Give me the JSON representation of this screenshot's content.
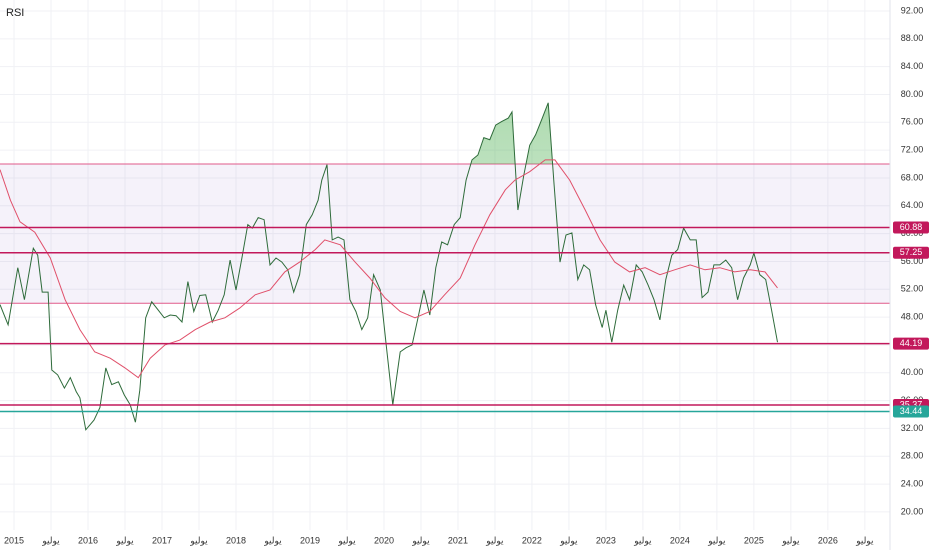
{
  "chart_data": {
    "type": "line",
    "title": "RSI",
    "xlim": [
      2014.81,
      2026.84
    ],
    "ylim": [
      17.4,
      93.58
    ],
    "xticks": [
      2015,
      {
        "value": 2015.5,
        "label": "يوليو"
      },
      2016,
      {
        "value": 2016.5,
        "label": "يوليو"
      },
      2017,
      {
        "value": 2017.5,
        "label": "يوليو"
      },
      2018,
      {
        "value": 2018.5,
        "label": "يوليو"
      },
      2019,
      {
        "value": 2019.5,
        "label": "يوليو"
      },
      2020,
      {
        "value": 2020.5,
        "label": "يوليو"
      },
      2021,
      {
        "value": 2021.5,
        "label": "يوليو"
      },
      2022,
      {
        "value": 2022.5,
        "label": "يوليو"
      },
      2023,
      {
        "value": 2023.5,
        "label": "يوليو"
      },
      2024,
      {
        "value": 2024.5,
        "label": "يوليو"
      },
      2025,
      {
        "value": 2025.5,
        "label": "يوليو"
      },
      2026,
      {
        "value": 2026.5,
        "label": "يوليو"
      }
    ],
    "yticks": [
      {
        "value": 92,
        "label": "92.00"
      },
      {
        "value": 88,
        "label": "88.00"
      },
      {
        "value": 84,
        "label": "84.00"
      },
      {
        "value": 80,
        "label": "80.00"
      },
      {
        "value": 76,
        "label": "76.00"
      },
      {
        "value": 72,
        "label": "72.00"
      },
      {
        "value": 68,
        "label": "68.00"
      },
      {
        "value": 64,
        "label": "64.00"
      },
      {
        "value": 60,
        "label": "60.00"
      },
      {
        "value": 56,
        "label": "56.00"
      },
      {
        "value": 52,
        "label": "52.00"
      },
      {
        "value": 48,
        "label": "48.00"
      },
      {
        "value": 44,
        "label": "44.00"
      },
      {
        "value": 40,
        "label": "40.00"
      },
      {
        "value": 36,
        "label": "36.00"
      },
      {
        "value": 32,
        "label": "32.00"
      },
      {
        "value": 28,
        "label": "28.00"
      },
      {
        "value": 24,
        "label": "24.00"
      },
      {
        "value": 20,
        "label": "20.00"
      }
    ],
    "grid": true,
    "band": {
      "from": 50,
      "to": 70,
      "color": "#7e57c2"
    },
    "levels": [
      {
        "value": 60.88,
        "color": "#c2185b"
      },
      {
        "value": 57.25,
        "color": "#c2185b"
      },
      {
        "value": 44.19,
        "color": "#c2185b"
      },
      {
        "value": 35.37,
        "color": "#c2185b"
      },
      {
        "value": 34.44,
        "color": "#26a69a"
      }
    ],
    "series": [
      {
        "color": "#2e6b3a",
        "x": [
          2014.81,
          2014.92,
          2015.05,
          2015.14,
          2015.26,
          2015.32,
          2015.38,
          2015.46,
          2015.51,
          2015.59,
          2015.68,
          2015.76,
          2015.84,
          2015.89,
          2015.97,
          2016.08,
          2016.16,
          2016.24,
          2016.32,
          2016.41,
          2016.49,
          2016.57,
          2016.64,
          2016.7,
          2016.78,
          2016.86,
          2016.95,
          2017.03,
          2017.11,
          2017.19,
          2017.27,
          2017.35,
          2017.43,
          2017.51,
          2017.59,
          2017.68,
          2017.76,
          2017.84,
          2017.92,
          2018.0,
          2018.08,
          2018.16,
          2018.22,
          2018.3,
          2018.38,
          2018.46,
          2018.54,
          2018.62,
          2018.7,
          2018.78,
          2018.86,
          2018.95,
          2019.03,
          2019.11,
          2019.16,
          2019.23,
          2019.3,
          2019.38,
          2019.46,
          2019.54,
          2019.62,
          2019.7,
          2019.78,
          2019.86,
          2019.95,
          2020.03,
          2020.12,
          2020.22,
          2020.3,
          2020.38,
          2020.46,
          2020.54,
          2020.62,
          2020.7,
          2020.78,
          2020.86,
          2020.95,
          2021.03,
          2021.11,
          2021.19,
          2021.27,
          2021.35,
          2021.43,
          2021.51,
          2021.59,
          2021.68,
          2021.73,
          2021.81,
          2021.89,
          2021.97,
          2022.05,
          2022.14,
          2022.22,
          2022.3,
          2022.38,
          2022.46,
          2022.54,
          2022.62,
          2022.7,
          2022.78,
          2022.86,
          2022.95,
          2023.0,
          2023.08,
          2023.16,
          2023.24,
          2023.32,
          2023.41,
          2023.49,
          2023.57,
          2023.65,
          2023.73,
          2023.81,
          2023.89,
          2023.97,
          2024.05,
          2024.14,
          2024.22,
          2024.3,
          2024.38,
          2024.46,
          2024.54,
          2024.62,
          2024.7,
          2024.78,
          2024.86,
          2024.95,
          2025.0,
          2025.08,
          2025.16,
          2025.24,
          2025.32
        ],
        "values": [
          49.8,
          46.9,
          55.1,
          50.5,
          57.9,
          56.9,
          51.6,
          51.6,
          40.4,
          39.7,
          37.8,
          39.3,
          37.3,
          36.4,
          31.8,
          33.2,
          35.0,
          40.7,
          38.3,
          38.7,
          36.8,
          35.4,
          32.9,
          37.5,
          47.9,
          50.2,
          49.0,
          47.9,
          48.3,
          48.2,
          47.3,
          53.1,
          48.8,
          51.1,
          51.2,
          47.3,
          49.0,
          51.2,
          56.2,
          51.9,
          56.5,
          61.3,
          60.8,
          62.3,
          62.0,
          55.5,
          56.5,
          55.9,
          54.8,
          51.6,
          54.1,
          61.3,
          62.7,
          64.8,
          67.7,
          69.9,
          59.1,
          59.5,
          59.1,
          50.5,
          48.8,
          46.2,
          47.9,
          54.1,
          51.9,
          44.0,
          35.4,
          43.0,
          43.6,
          44.0,
          47.9,
          51.9,
          48.3,
          55.1,
          58.8,
          58.4,
          61.3,
          62.3,
          67.7,
          70.6,
          71.3,
          73.8,
          73.5,
          75.6,
          76.1,
          76.6,
          77.5,
          63.4,
          68.4,
          72.7,
          74.2,
          76.6,
          78.8,
          67.0,
          55.9,
          59.8,
          60.1,
          53.4,
          55.5,
          54.8,
          49.8,
          46.5,
          49.0,
          44.4,
          49.0,
          52.6,
          50.5,
          55.5,
          54.5,
          52.6,
          50.5,
          47.6,
          53.4,
          56.9,
          57.7,
          60.8,
          59.1,
          59.1,
          50.8,
          51.6,
          55.5,
          55.5,
          56.2,
          55.1,
          50.5,
          53.6,
          55.5,
          57.2,
          54.1,
          53.4,
          49.0,
          44.4
        ]
      },
      {
        "color": "#e0506a",
        "x": [
          2014.81,
          2014.95,
          2015.08,
          2015.28,
          2015.49,
          2015.69,
          2015.89,
          2016.09,
          2016.3,
          2016.5,
          2016.68,
          2016.84,
          2017.04,
          2017.24,
          2017.45,
          2017.65,
          2017.85,
          2018.05,
          2018.26,
          2018.46,
          2018.66,
          2018.86,
          2019.07,
          2019.2,
          2019.41,
          2019.61,
          2019.81,
          2020.01,
          2020.22,
          2020.42,
          2020.62,
          2020.82,
          2021.03,
          2021.23,
          2021.43,
          2021.64,
          2021.77,
          2021.97,
          2022.18,
          2022.31,
          2022.51,
          2022.72,
          2022.92,
          2023.12,
          2023.32,
          2023.53,
          2023.73,
          2023.93,
          2024.14,
          2024.34,
          2024.54,
          2024.74,
          2024.95,
          2025.15,
          2025.32
        ],
        "values": [
          69.2,
          64.8,
          61.7,
          60.2,
          56.5,
          50.5,
          46.2,
          43.0,
          42.1,
          40.7,
          39.3,
          42.1,
          44.0,
          44.7,
          46.2,
          47.3,
          47.9,
          49.3,
          51.2,
          51.9,
          54.5,
          55.9,
          57.7,
          59.1,
          58.4,
          55.9,
          53.6,
          50.8,
          48.8,
          47.9,
          48.8,
          51.2,
          53.6,
          58.4,
          62.7,
          66.3,
          67.7,
          68.9,
          70.6,
          70.6,
          67.7,
          63.4,
          59.1,
          55.9,
          54.5,
          55.1,
          54.1,
          54.8,
          55.5,
          54.8,
          55.1,
          54.5,
          54.8,
          54.5,
          52.2
        ]
      }
    ]
  }
}
